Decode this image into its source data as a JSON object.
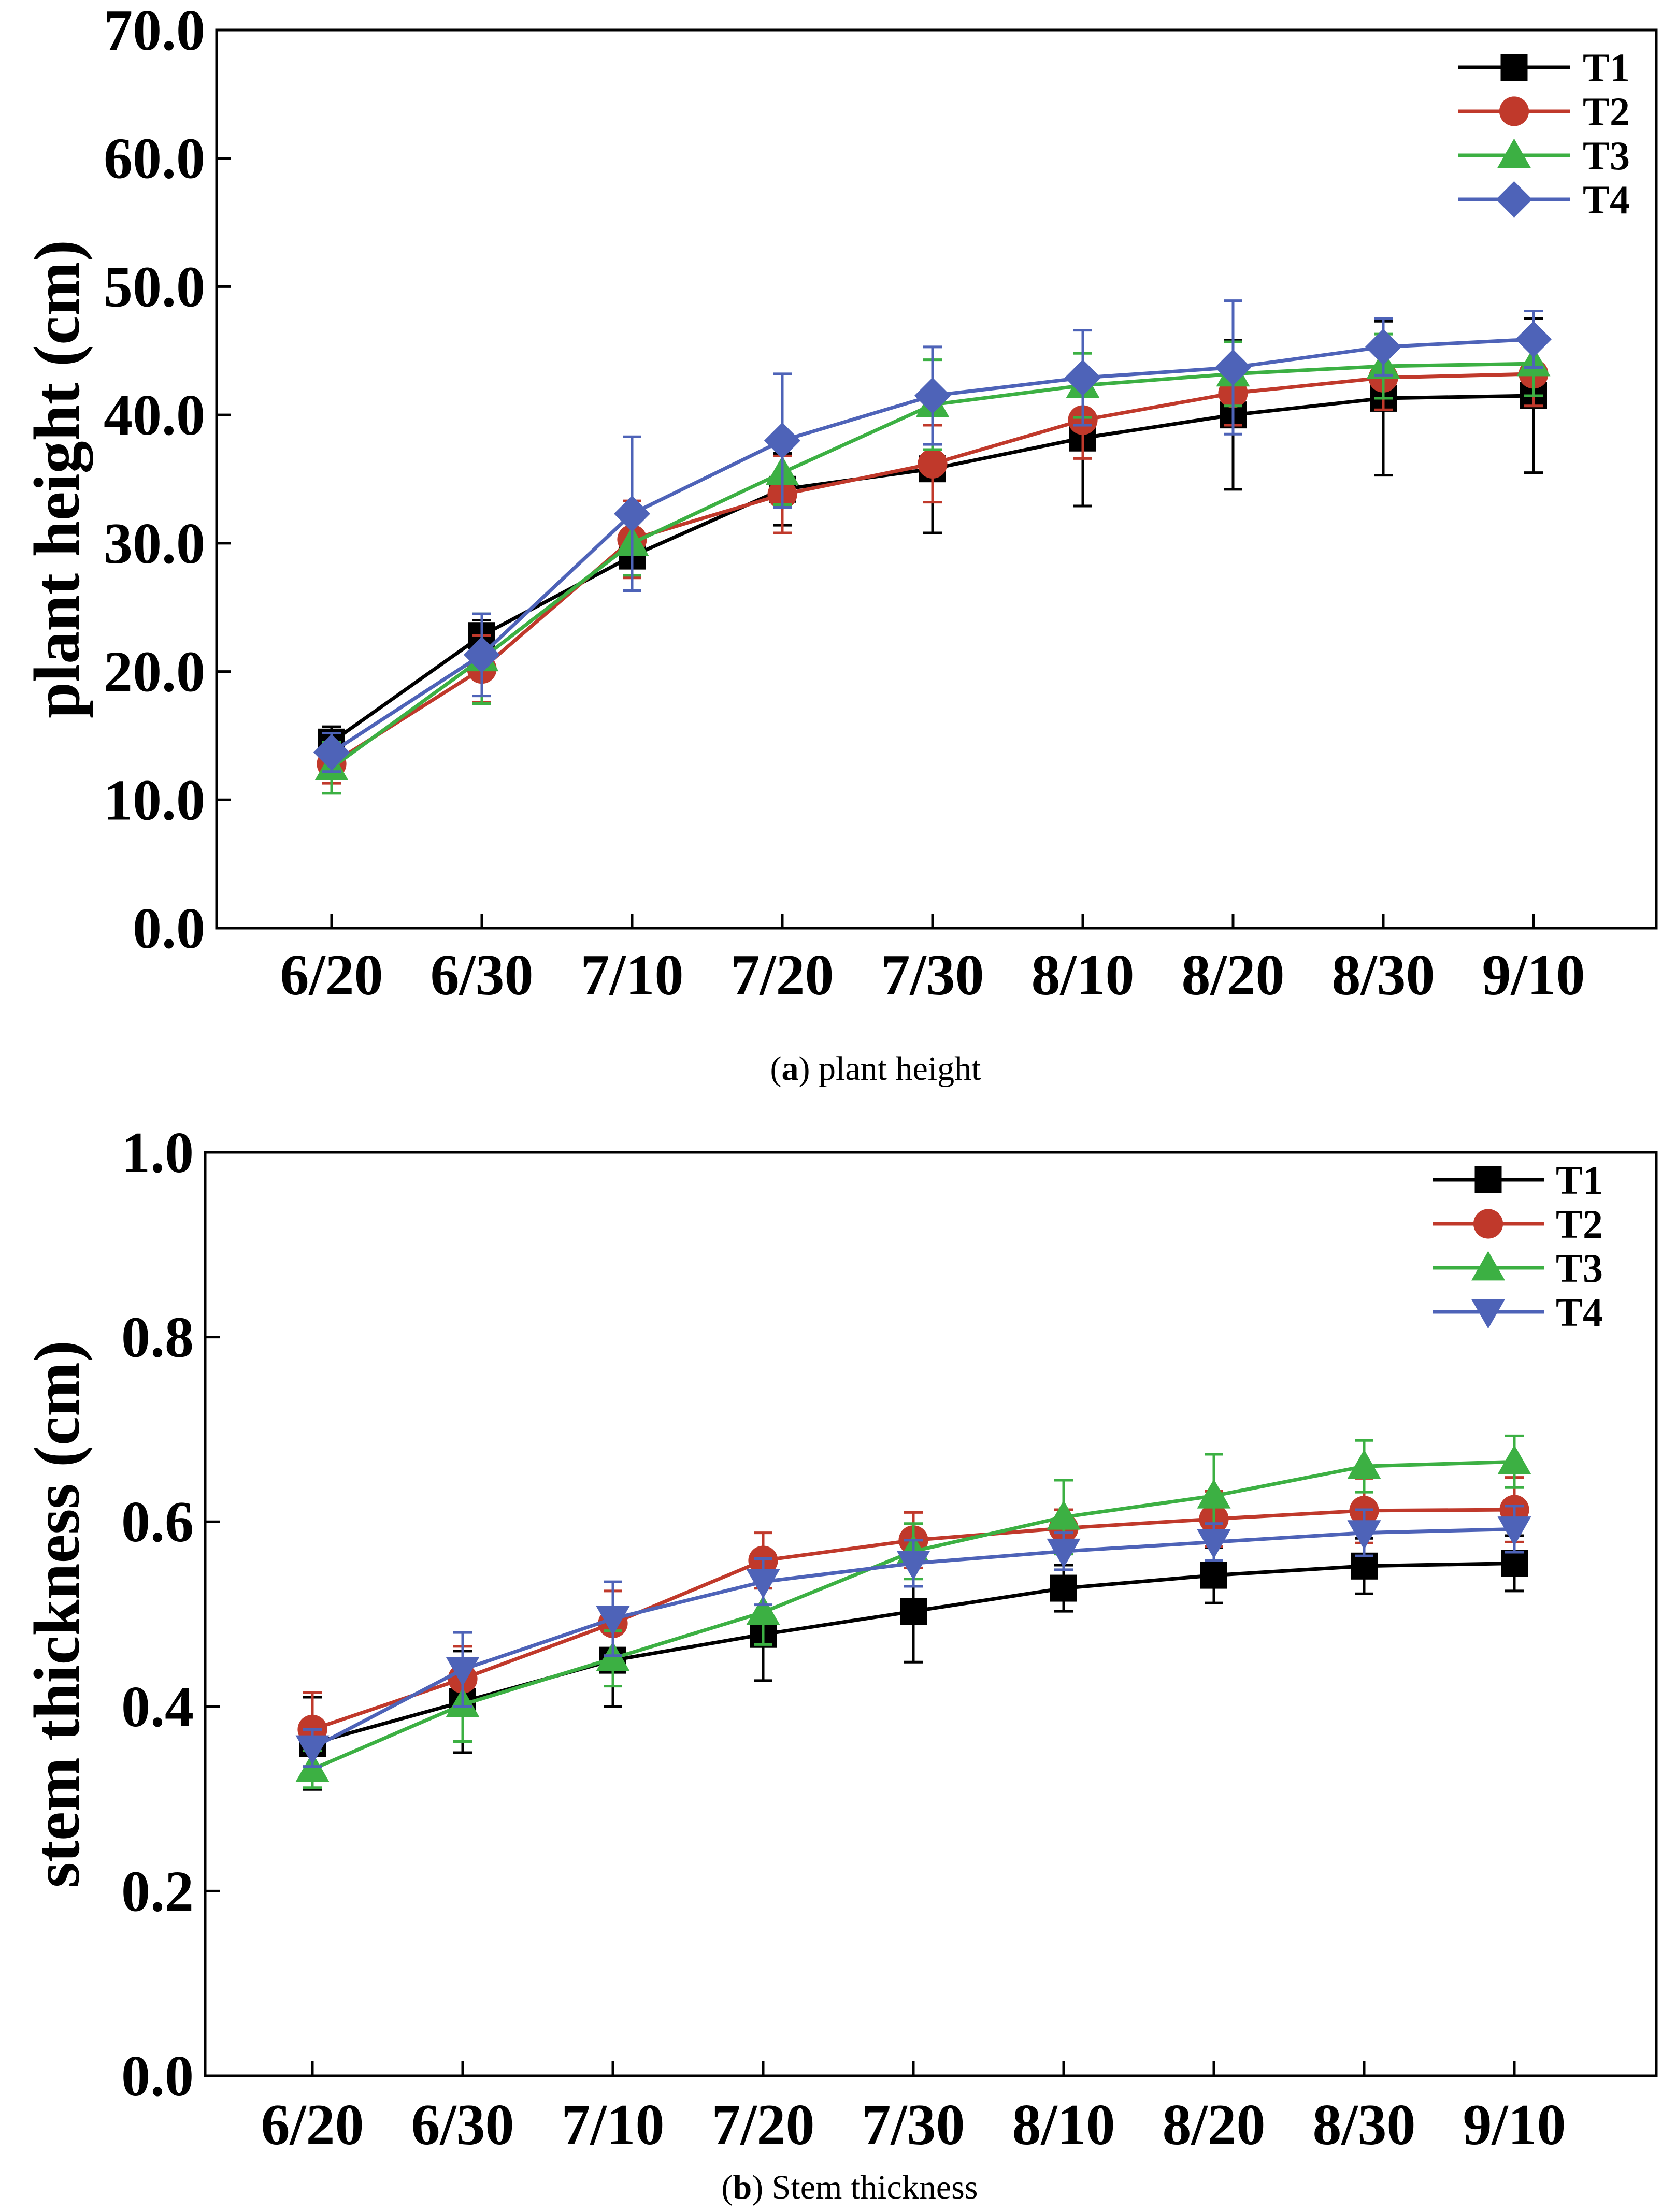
{
  "chart_data": [
    {
      "type": "line",
      "categories": [
        "6/20",
        "6/30",
        "7/10",
        "7/20",
        "7/30",
        "8/10",
        "8/20",
        "8/30",
        "9/10"
      ],
      "ylabel": "plant height (cm)",
      "xlabel": "",
      "ylim": [
        0,
        70
      ],
      "yticks": [
        0,
        10,
        20,
        30,
        40,
        50,
        60,
        70
      ],
      "ytick_labels": [
        "0.0",
        "10.0",
        "20.0",
        "30.0",
        "40.0",
        "50.0",
        "60.0",
        "70.0"
      ],
      "caption_letter": "a",
      "caption_paren_open": "(",
      "caption_rest": ") plant height",
      "legend_position": "top-right",
      "series": [
        {
          "name": "T1",
          "color": "#000000",
          "marker": "square",
          "values": [
            14.5,
            22.8,
            29.0,
            34.2,
            35.8,
            38.2,
            40.0,
            41.3,
            41.5
          ],
          "errors": [
            1.2,
            1.2,
            1.5,
            2.8,
            5.0,
            5.3,
            5.8,
            6.0,
            6.0
          ]
        },
        {
          "name": "T2",
          "color": "#c0392b",
          "marker": "circle",
          "values": [
            12.8,
            20.2,
            30.3,
            33.8,
            36.2,
            39.6,
            41.7,
            42.9,
            43.2
          ],
          "errors": [
            1.5,
            2.6,
            3.0,
            3.0,
            3.0,
            3.0,
            2.5,
            2.5,
            2.5
          ]
        },
        {
          "name": "T3",
          "color": "#3cb043",
          "marker": "triangle-up",
          "values": [
            12.5,
            21.0,
            30.0,
            35.5,
            40.8,
            42.3,
            43.2,
            43.8,
            44.0
          ],
          "errors": [
            2.0,
            3.5,
            2.5,
            2.5,
            3.5,
            2.5,
            2.5,
            2.5,
            2.5
          ]
        },
        {
          "name": "T4",
          "color": "#4e63b8",
          "marker": "diamond",
          "values": [
            13.7,
            21.3,
            32.3,
            38.0,
            41.5,
            42.9,
            43.7,
            45.3,
            45.9
          ],
          "errors": [
            1.5,
            3.2,
            6.0,
            5.2,
            3.8,
            3.7,
            5.2,
            2.2,
            2.2
          ]
        }
      ]
    },
    {
      "type": "line",
      "categories": [
        "6/20",
        "6/30",
        "7/10",
        "7/20",
        "7/30",
        "8/10",
        "8/20",
        "8/30",
        "9/10"
      ],
      "ylabel": "stem thickness (cm)",
      "xlabel": "",
      "ylim": [
        0,
        1.0
      ],
      "yticks": [
        0,
        0.2,
        0.4,
        0.6,
        0.8,
        1.0
      ],
      "ytick_labels": [
        "0.0",
        "0.2",
        "0.4",
        "0.6",
        "0.8",
        "1.0"
      ],
      "caption_letter": "b",
      "caption_paren_open": "(",
      "caption_rest": ") Stem thickness",
      "legend_position": "top-right",
      "series": [
        {
          "name": "T1",
          "color": "#000000",
          "marker": "square",
          "values": [
            0.36,
            0.405,
            0.45,
            0.478,
            0.503,
            0.528,
            0.542,
            0.552,
            0.555
          ],
          "errors": [
            0.05,
            0.055,
            0.05,
            0.05,
            0.055,
            0.025,
            0.03,
            0.03,
            0.03
          ]
        },
        {
          "name": "T2",
          "color": "#c0392b",
          "marker": "circle",
          "values": [
            0.375,
            0.43,
            0.49,
            0.558,
            0.58,
            0.593,
            0.603,
            0.612,
            0.613
          ],
          "errors": [
            0.04,
            0.035,
            0.035,
            0.03,
            0.03,
            0.02,
            0.03,
            0.035,
            0.035
          ]
        },
        {
          "name": "T3",
          "color": "#3cb043",
          "marker": "triangle-up",
          "values": [
            0.332,
            0.402,
            0.452,
            0.502,
            0.568,
            0.605,
            0.628,
            0.66,
            0.665
          ],
          "errors": [
            0.02,
            0.04,
            0.03,
            0.035,
            0.03,
            0.04,
            0.045,
            0.028,
            0.028
          ]
        },
        {
          "name": "T4",
          "color": "#4e63b8",
          "marker": "triangle-down",
          "values": [
            0.355,
            0.44,
            0.495,
            0.535,
            0.555,
            0.568,
            0.578,
            0.588,
            0.592
          ],
          "errors": [
            0.02,
            0.04,
            0.04,
            0.025,
            0.025,
            0.02,
            0.02,
            0.025,
            0.025
          ]
        }
      ]
    }
  ]
}
